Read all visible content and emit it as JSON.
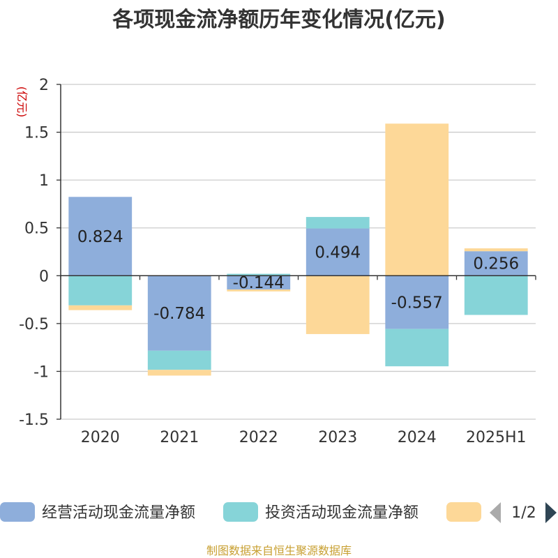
{
  "chart_data": {
    "type": "bar",
    "stacked": true,
    "title": "各项现金流净额历年变化情况(亿元)",
    "unit": "(亿元)",
    "categories": [
      "2020",
      "2021",
      "2022",
      "2023",
      "2024",
      "2025H1"
    ],
    "ylim": [
      -1.5,
      2
    ],
    "yticks": [
      "2",
      "1.5",
      "1",
      "0.5",
      "0",
      "-0.5",
      "-1",
      "-1.5"
    ],
    "grid": true,
    "legend_position": "bottom",
    "series": [
      {
        "name": "经营活动现金流量净额",
        "color": "#8eaedb",
        "values": [
          0.824,
          -0.784,
          -0.144,
          0.494,
          -0.557,
          0.256
        ],
        "labels": [
          "0.824",
          "-0.784",
          "-0.144",
          "0.494",
          "-0.557",
          "0.256"
        ]
      },
      {
        "name": "投资活动现金流量净额",
        "color": "#86d4d8",
        "values": [
          -0.31,
          -0.2,
          0.02,
          0.12,
          -0.39,
          -0.41
        ]
      },
      {
        "name": "",
        "color": "#fdd898",
        "values": [
          -0.05,
          -0.06,
          -0.02,
          -0.61,
          1.59,
          0.03
        ]
      }
    ],
    "legend_page": "1/2",
    "source": "制图数据来自恒生聚源数据库"
  }
}
